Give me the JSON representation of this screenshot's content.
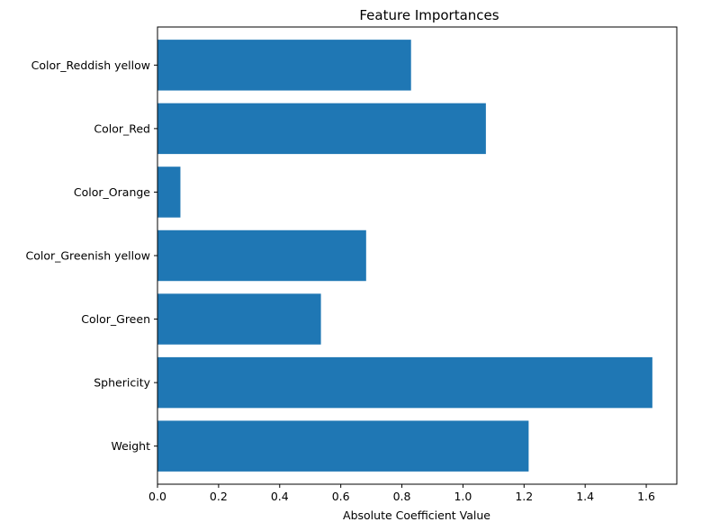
{
  "chart_data": {
    "type": "bar",
    "orientation": "horizontal",
    "title": "Feature Importances",
    "xlabel": "Absolute Coefficient Value",
    "ylabel": "",
    "categories": [
      "Weight",
      "Sphericity",
      "Color_Green",
      "Color_Greenish yellow",
      "Color_Orange",
      "Color_Red",
      "Color_Reddish yellow"
    ],
    "values": [
      1.215,
      1.62,
      0.535,
      0.683,
      0.075,
      1.075,
      0.83
    ],
    "xlim": [
      0,
      1.7
    ],
    "xticks": [
      0.0,
      0.2,
      0.4,
      0.6,
      0.8,
      1.0,
      1.2,
      1.4,
      1.6
    ],
    "xtick_labels": [
      "0.0",
      "0.2",
      "0.4",
      "0.6",
      "0.8",
      "1.0",
      "1.2",
      "1.4",
      "1.6"
    ],
    "bar_color": "#1f77b4",
    "grid": false
  }
}
